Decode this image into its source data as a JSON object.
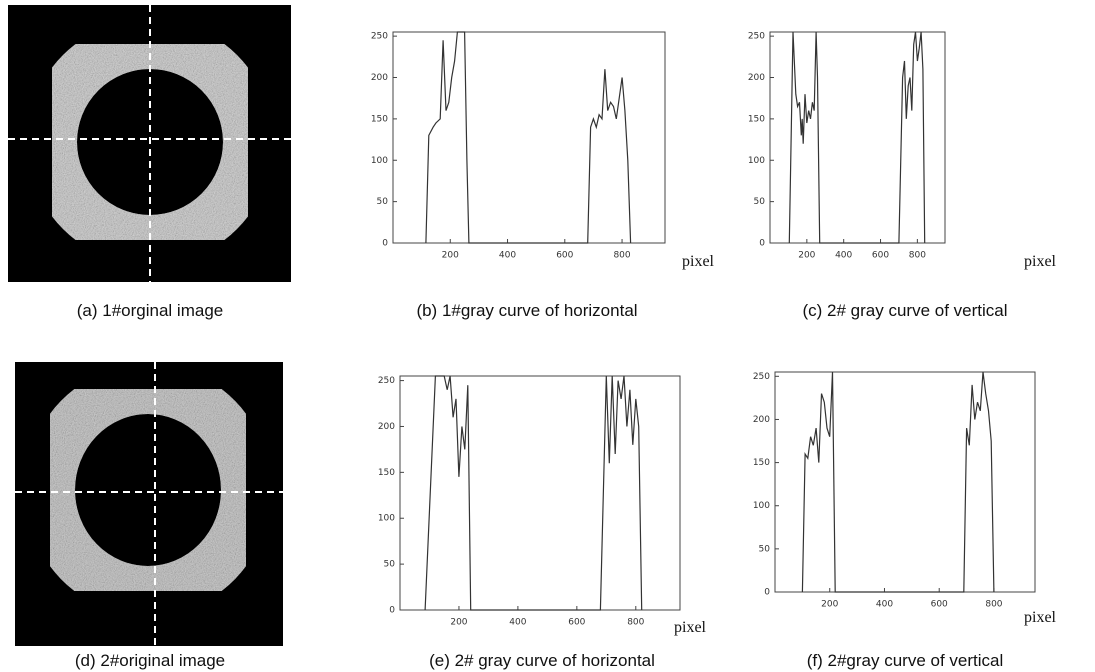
{
  "images": [
    {
      "caption": "(a) 1#orginal image"
    },
    {
      "caption": "(d) 2#original image"
    }
  ],
  "chart_data": [
    {
      "type": "line",
      "caption": "(b) 1#gray curve of horizontal",
      "x_label": "pixel",
      "x": [
        115,
        125,
        140,
        150,
        165,
        175,
        185,
        195,
        205,
        215,
        225,
        250,
        258,
        265,
        275,
        680,
        690,
        700,
        710,
        720,
        730,
        740,
        750,
        760,
        770,
        780,
        790,
        800,
        810,
        820,
        830
      ],
      "values": [
        0,
        130,
        140,
        145,
        150,
        245,
        160,
        170,
        200,
        220,
        255,
        255,
        100,
        0,
        0,
        0,
        140,
        150,
        140,
        155,
        150,
        210,
        160,
        170,
        165,
        150,
        175,
        200,
        160,
        100,
        0
      ],
      "color": "#333333",
      "xlim": [
        0,
        950
      ],
      "ylim": [
        0,
        255
      ],
      "xticks": [
        200,
        400,
        600,
        800
      ],
      "yticks": [
        0,
        50,
        100,
        150,
        200,
        250
      ]
    },
    {
      "type": "line",
      "caption": "(c) 2# gray curve of vertical",
      "x_label": "pixel",
      "x": [
        105,
        125,
        140,
        150,
        160,
        170,
        175,
        180,
        190,
        200,
        210,
        220,
        230,
        240,
        250,
        258,
        270,
        700,
        720,
        730,
        740,
        750,
        760,
        770,
        780,
        790,
        800,
        810,
        820,
        830,
        840
      ],
      "values": [
        0,
        255,
        180,
        165,
        170,
        130,
        150,
        120,
        180,
        145,
        160,
        150,
        170,
        160,
        255,
        200,
        0,
        0,
        200,
        220,
        150,
        190,
        200,
        160,
        240,
        255,
        220,
        235,
        255,
        210,
        0
      ],
      "color": "#333333",
      "xlim": [
        0,
        950
      ],
      "ylim": [
        0,
        255
      ],
      "xticks": [
        200,
        400,
        600,
        800
      ],
      "yticks": [
        0,
        50,
        100,
        150,
        200,
        250
      ]
    },
    {
      "type": "line",
      "caption": "(e) 2# gray curve of horizontal",
      "x_label": "pixel",
      "x": [
        85,
        120,
        150,
        160,
        170,
        180,
        190,
        200,
        210,
        220,
        230,
        240,
        680,
        700,
        710,
        720,
        730,
        740,
        750,
        760,
        770,
        780,
        790,
        800,
        810,
        820
      ],
      "values": [
        0,
        255,
        255,
        240,
        255,
        210,
        230,
        145,
        200,
        175,
        245,
        0,
        0,
        255,
        160,
        255,
        170,
        250,
        230,
        255,
        200,
        240,
        180,
        230,
        200,
        0
      ],
      "color": "#333333",
      "xlim": [
        0,
        950
      ],
      "ylim": [
        0,
        255
      ],
      "xticks": [
        200,
        400,
        600,
        800
      ],
      "yticks": [
        0,
        50,
        100,
        150,
        200,
        250
      ]
    },
    {
      "type": "line",
      "caption": "(f) 2#gray curve of vertical",
      "x_label": "pixel",
      "x": [
        100,
        110,
        120,
        130,
        140,
        150,
        160,
        170,
        180,
        190,
        200,
        210,
        220,
        690,
        700,
        710,
        720,
        730,
        740,
        750,
        760,
        770,
        780,
        790,
        800
      ],
      "values": [
        0,
        160,
        155,
        180,
        170,
        190,
        150,
        230,
        220,
        190,
        180,
        255,
        0,
        0,
        190,
        170,
        240,
        200,
        220,
        210,
        255,
        230,
        210,
        175,
        0
      ],
      "color": "#333333",
      "xlim": [
        0,
        950
      ],
      "ylim": [
        0,
        255
      ],
      "xticks": [
        200,
        400,
        600,
        800
      ],
      "yticks": [
        0,
        50,
        100,
        150,
        200,
        250
      ]
    }
  ]
}
